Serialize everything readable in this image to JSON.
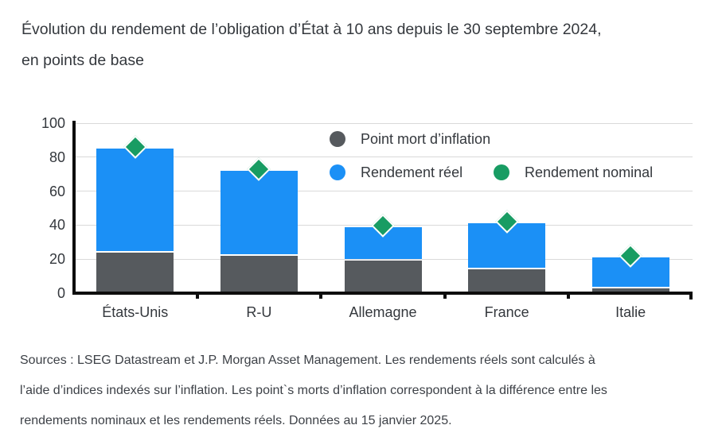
{
  "title_lines": [
    "Évolution du rendement de l’obligation d’État à 10 ans depuis le 30 septembre 2024,",
    "en points de base"
  ],
  "footer_lines": [
    "Sources : LSEG Datastream et J.P. Morgan Asset Management. Les rendements réels sont calculés à",
    "l’aide d’indices indexés sur l’inflation. Les point`s morts d’inflation correspondent à la différence entre les",
    "rendements nominaux et les rendements réels. Données au 15 janvier 2025."
  ],
  "chart_data": {
    "type": "bar",
    "stacked": true,
    "title": "Évolution du rendement de l’obligation d’État à 10 ans depuis le 30 septembre 2024, en points de base",
    "categories": [
      "États-Unis",
      "R-U",
      "Allemagne",
      "France",
      "Italie"
    ],
    "series": [
      {
        "name": "Point mort d’inflation",
        "type": "bar",
        "color": "#565a5e",
        "values": [
          24,
          22,
          19,
          14,
          3
        ]
      },
      {
        "name": "Rendement réel",
        "type": "bar",
        "color": "#1b90f6",
        "values": [
          61,
          50,
          20,
          27,
          18
        ]
      },
      {
        "name": "Rendement nominal",
        "type": "diamond-marker",
        "color": "#189c63",
        "values": [
          85,
          72,
          39,
          41,
          21
        ]
      }
    ],
    "ylabel": "",
    "xlabel": "",
    "ylim": [
      0,
      100
    ],
    "yticks": [
      0,
      20,
      40,
      60,
      80,
      100
    ],
    "grid": true,
    "legend_position": "top-right-inside",
    "accent_colors": {
      "breakeven_gray": "#565a5e",
      "real_blue": "#1b90f6",
      "nominal_green": "#189c63",
      "text": "#34383d",
      "gridline": "#d9d9d9",
      "axis": "#0d0d0d"
    }
  }
}
